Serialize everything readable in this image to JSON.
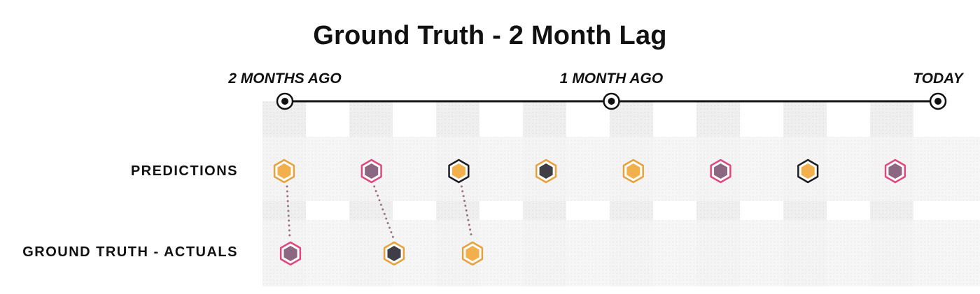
{
  "title": "Ground Truth - 2 Month Lag",
  "timeline": {
    "markers": [
      {
        "label": "2 MONTHS AGO",
        "position": 0
      },
      {
        "label": "1 MONTH AGO",
        "position": 0.5
      },
      {
        "label": "TODAY",
        "position": 1
      }
    ]
  },
  "rows": {
    "predictions": {
      "label": "PREDICTIONS"
    },
    "actuals": {
      "label": "GROUND TRUTH - ACTUALS"
    }
  },
  "colors": {
    "orange": "#f2b04d",
    "orange_border": "#e6a13c",
    "mauve": "#8c6782",
    "pink_border": "#e0467f",
    "dark": "#3f3d45",
    "dark_border": "#1d1c22",
    "connector": "#9a7080",
    "column_shade": "#efeff0",
    "row_shade": "#f4f4f5"
  },
  "predictions": [
    {
      "fill": "orange",
      "stroke": "orange_border"
    },
    {
      "fill": "mauve",
      "stroke": "pink_border"
    },
    {
      "fill": "orange",
      "stroke": "dark_border"
    },
    {
      "fill": "dark",
      "stroke": "orange_border"
    },
    {
      "fill": "orange",
      "stroke": "orange_border"
    },
    {
      "fill": "mauve",
      "stroke": "pink_border"
    },
    {
      "fill": "orange",
      "stroke": "dark_border"
    },
    {
      "fill": "mauve",
      "stroke": "pink_border"
    }
  ],
  "actuals": [
    {
      "fill": "mauve",
      "stroke": "pink_border"
    },
    {
      "fill": "dark",
      "stroke": "orange_border"
    },
    {
      "fill": "orange",
      "stroke": "orange_border"
    }
  ]
}
